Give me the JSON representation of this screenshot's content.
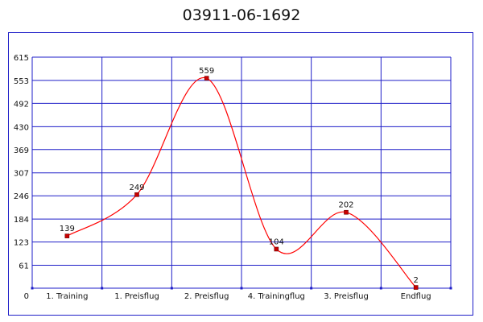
{
  "chart_data": {
    "type": "line",
    "title": "03911-06-1692",
    "xlabel": "",
    "ylabel": "",
    "categories": [
      "1. Training",
      "1. Preisflug",
      "2. Preisflug",
      "4. Trainingflug",
      "3. Preisflug",
      "Endflug"
    ],
    "values": [
      139,
      249,
      559,
      104,
      202,
      2
    ],
    "data_labels": [
      "139",
      "249",
      "559",
      "104",
      "202",
      "2"
    ],
    "yticks": [
      0,
      61,
      123,
      184,
      246,
      307,
      369,
      430,
      492,
      553,
      615
    ],
    "ytick_labels": [
      "0",
      "61",
      "123",
      "184",
      "246",
      "307",
      "369",
      "430",
      "492",
      "553",
      "615"
    ],
    "ylim": [
      0,
      615
    ],
    "grid": true,
    "smooth": true,
    "colors": {
      "line": "#ff0000",
      "marker_fill": "#cc0000",
      "grid": "#1e1ec8",
      "frame": "#1e1ec8"
    }
  }
}
